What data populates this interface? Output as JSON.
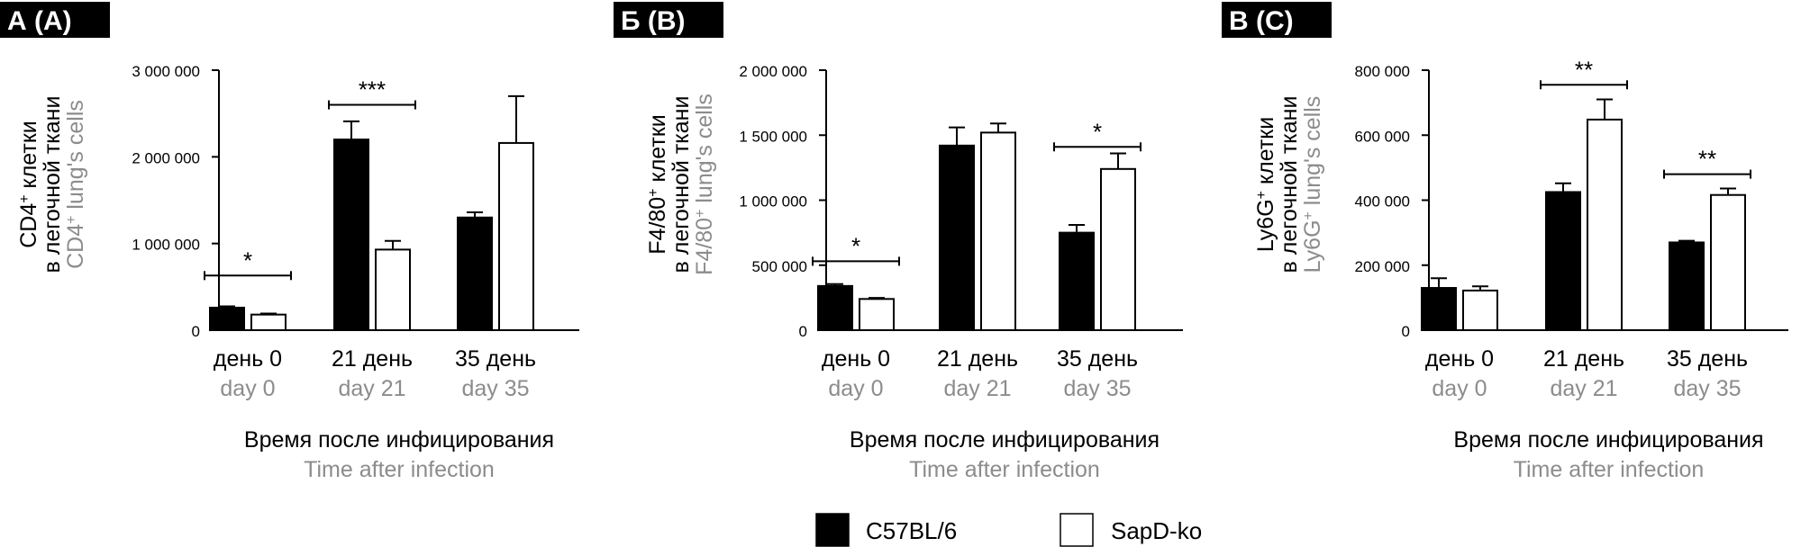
{
  "colors": {
    "axis": "#000000",
    "secondary_text": "#8c8c8c",
    "panel_label_bg": "#000000",
    "panel_label_text": "#ffffff",
    "series_fills": [
      "#000000",
      "#ffffff"
    ]
  },
  "legend": {
    "placement": "bottom-center",
    "items": [
      {
        "label": "C57BL/6",
        "fill": "#000000"
      },
      {
        "label": "SapD-ko",
        "fill": "#ffffff"
      }
    ]
  },
  "chart_data": [
    {
      "type": "bar",
      "panel_label": "А (A)",
      "ylabel_ru_base": "CD4",
      "ylabel_ru_sup": "+",
      "ylabel_ru_rest": " клетки",
      "ylabel_ru_line2": "в легочной ткани",
      "ylabel_en_base": "CD4",
      "ylabel_en_sup": "+",
      "ylabel_en_rest": " lung's cells",
      "xlabel_ru": "Время после инфицирования",
      "xlabel_en": "Time after infection",
      "categories_ru": [
        "день 0",
        "21 день",
        "35 день"
      ],
      "categories_en": [
        "day 0",
        "day 21",
        "day 35"
      ],
      "ylim": [
        0,
        3000000
      ],
      "yticks": [
        0,
        1000000,
        2000000,
        3000000
      ],
      "ytick_labels": [
        "0",
        "1 000 000",
        "2 000 000",
        "3 000 000"
      ],
      "series": [
        {
          "name": "C57BL/6",
          "values": [
            260000,
            2200000,
            1300000
          ],
          "errors": [
            15000,
            210000,
            60000
          ]
        },
        {
          "name": "SapD-ko",
          "values": [
            180000,
            930000,
            2160000
          ],
          "errors": [
            12000,
            100000,
            540000
          ]
        }
      ],
      "significance": [
        {
          "category_index": 0,
          "label": "*",
          "y": 630000
        },
        {
          "category_index": 1,
          "label": "***",
          "y": 2600000
        }
      ]
    },
    {
      "type": "bar",
      "panel_label": "Б (B)",
      "ylabel_ru_base": "F4/80",
      "ylabel_ru_sup": "+",
      "ylabel_ru_rest": " клетки",
      "ylabel_ru_line2": "в легочной ткани",
      "ylabel_en_base": "F4/80",
      "ylabel_en_sup": "+",
      "ylabel_en_rest": " lung's cells",
      "xlabel_ru": "Время после инфицирования",
      "xlabel_en": "Time after infection",
      "categories_ru": [
        "день 0",
        "21 день",
        "35 день"
      ],
      "categories_en": [
        "day 0",
        "day 21",
        "day 35"
      ],
      "ylim": [
        0,
        2000000
      ],
      "yticks": [
        0,
        500000,
        1000000,
        1500000,
        2000000
      ],
      "ytick_labels": [
        "0",
        "500 000",
        "1 000 000",
        "1 500 000",
        "2 000 000"
      ],
      "series": [
        {
          "name": "C57BL/6",
          "values": [
            340000,
            1420000,
            750000
          ],
          "errors": [
            15000,
            140000,
            60000
          ]
        },
        {
          "name": "SapD-ko",
          "values": [
            240000,
            1520000,
            1240000
          ],
          "errors": [
            8000,
            70000,
            120000
          ]
        }
      ],
      "significance": [
        {
          "category_index": 0,
          "label": "*",
          "y": 530000
        },
        {
          "category_index": 2,
          "label": "*",
          "y": 1410000
        }
      ]
    },
    {
      "type": "bar",
      "panel_label": "В (C)",
      "ylabel_ru_base": "Ly6G",
      "ylabel_ru_sup": "+",
      "ylabel_ru_rest": " клетки",
      "ylabel_ru_line2": "в легочной ткани",
      "ylabel_en_base": "Ly6G",
      "ylabel_en_sup": "+",
      "ylabel_en_rest": " lung's cells",
      "xlabel_ru": "Время после инфицирования",
      "xlabel_en": "Time after infection",
      "categories_ru": [
        "день 0",
        "21 день",
        "35 день"
      ],
      "categories_en": [
        "day 0",
        "day 21",
        "day 35"
      ],
      "ylim": [
        0,
        800000
      ],
      "yticks": [
        0,
        200000,
        400000,
        600000,
        800000
      ],
      "ytick_labels": [
        "0",
        "200 000",
        "400 000",
        "600 000",
        "800 000"
      ],
      "series": [
        {
          "name": "C57BL/6",
          "values": [
            130000,
            425000,
            270000
          ],
          "errors": [
            30000,
            27000,
            5000
          ]
        },
        {
          "name": "SapD-ko",
          "values": [
            122000,
            648000,
            416000
          ],
          "errors": [
            13000,
            62000,
            20000
          ]
        }
      ],
      "significance": [
        {
          "category_index": 1,
          "label": "**",
          "y": 755000
        },
        {
          "category_index": 2,
          "label": "**",
          "y": 480000
        }
      ]
    }
  ]
}
